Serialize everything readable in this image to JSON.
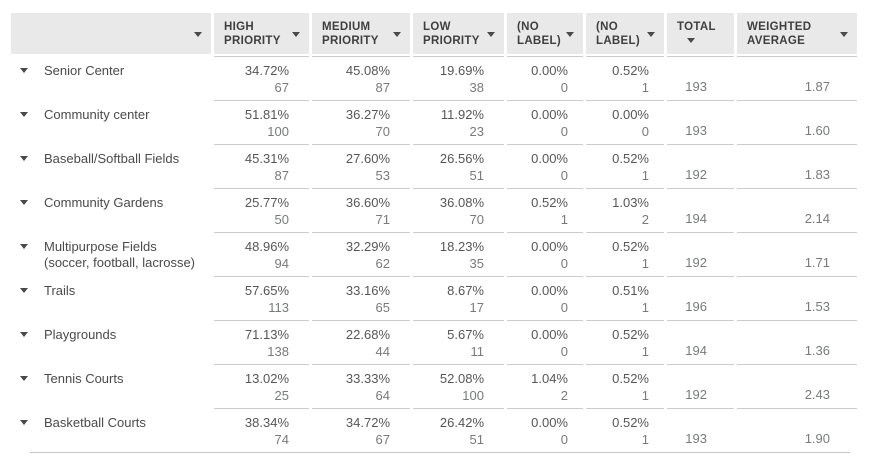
{
  "header": {
    "first_column_label": "",
    "columns": [
      {
        "label": "HIGH PRIORITY"
      },
      {
        "label": "MEDIUM PRIORITY"
      },
      {
        "label": "LOW PRIORITY"
      },
      {
        "label": "(NO LABEL)"
      },
      {
        "label": "(NO LABEL)"
      },
      {
        "label": "TOTAL"
      },
      {
        "label": "WEIGHTED AVERAGE"
      }
    ]
  },
  "rows": [
    {
      "label": "Senior Center",
      "cells": [
        {
          "pct": "34.72%",
          "count": "67"
        },
        {
          "pct": "45.08%",
          "count": "87"
        },
        {
          "pct": "19.69%",
          "count": "38"
        },
        {
          "pct": "0.00%",
          "count": "0"
        },
        {
          "pct": "0.52%",
          "count": "1"
        }
      ],
      "total": "193",
      "weighted": "1.87"
    },
    {
      "label": "Community center",
      "cells": [
        {
          "pct": "51.81%",
          "count": "100"
        },
        {
          "pct": "36.27%",
          "count": "70"
        },
        {
          "pct": "11.92%",
          "count": "23"
        },
        {
          "pct": "0.00%",
          "count": "0"
        },
        {
          "pct": "0.00%",
          "count": "0"
        }
      ],
      "total": "193",
      "weighted": "1.60"
    },
    {
      "label": "Baseball/Softball Fields",
      "cells": [
        {
          "pct": "45.31%",
          "count": "87"
        },
        {
          "pct": "27.60%",
          "count": "53"
        },
        {
          "pct": "26.56%",
          "count": "51"
        },
        {
          "pct": "0.00%",
          "count": "0"
        },
        {
          "pct": "0.52%",
          "count": "1"
        }
      ],
      "total": "192",
      "weighted": "1.83"
    },
    {
      "label": "Community Gardens",
      "cells": [
        {
          "pct": "25.77%",
          "count": "50"
        },
        {
          "pct": "36.60%",
          "count": "71"
        },
        {
          "pct": "36.08%",
          "count": "70"
        },
        {
          "pct": "0.52%",
          "count": "1"
        },
        {
          "pct": "1.03%",
          "count": "2"
        }
      ],
      "total": "194",
      "weighted": "2.14"
    },
    {
      "label": "Multipurpose Fields (soccer, football, lacrosse)",
      "cells": [
        {
          "pct": "48.96%",
          "count": "94"
        },
        {
          "pct": "32.29%",
          "count": "62"
        },
        {
          "pct": "18.23%",
          "count": "35"
        },
        {
          "pct": "0.00%",
          "count": "0"
        },
        {
          "pct": "0.52%",
          "count": "1"
        }
      ],
      "total": "192",
      "weighted": "1.71"
    },
    {
      "label": "Trails",
      "cells": [
        {
          "pct": "57.65%",
          "count": "113"
        },
        {
          "pct": "33.16%",
          "count": "65"
        },
        {
          "pct": "8.67%",
          "count": "17"
        },
        {
          "pct": "0.00%",
          "count": "0"
        },
        {
          "pct": "0.51%",
          "count": "1"
        }
      ],
      "total": "196",
      "weighted": "1.53"
    },
    {
      "label": "Playgrounds",
      "cells": [
        {
          "pct": "71.13%",
          "count": "138"
        },
        {
          "pct": "22.68%",
          "count": "44"
        },
        {
          "pct": "5.67%",
          "count": "11"
        },
        {
          "pct": "0.00%",
          "count": "0"
        },
        {
          "pct": "0.52%",
          "count": "1"
        }
      ],
      "total": "194",
      "weighted": "1.36"
    },
    {
      "label": "Tennis Courts",
      "cells": [
        {
          "pct": "13.02%",
          "count": "25"
        },
        {
          "pct": "33.33%",
          "count": "64"
        },
        {
          "pct": "52.08%",
          "count": "100"
        },
        {
          "pct": "1.04%",
          "count": "2"
        },
        {
          "pct": "0.52%",
          "count": "1"
        }
      ],
      "total": "192",
      "weighted": "2.43"
    },
    {
      "label": "Basketball Courts",
      "cells": [
        {
          "pct": "38.34%",
          "count": "74"
        },
        {
          "pct": "34.72%",
          "count": "67"
        },
        {
          "pct": "26.42%",
          "count": "51"
        },
        {
          "pct": "0.00%",
          "count": "0"
        },
        {
          "pct": "0.52%",
          "count": "1"
        }
      ],
      "total": "193",
      "weighted": "1.90"
    }
  ],
  "colors": {
    "header_background": "#e9e9e9",
    "header_text": "#3f3f3f",
    "percent_text": "#565656",
    "count_text": "#787a7a",
    "separator": "#cccccc"
  }
}
